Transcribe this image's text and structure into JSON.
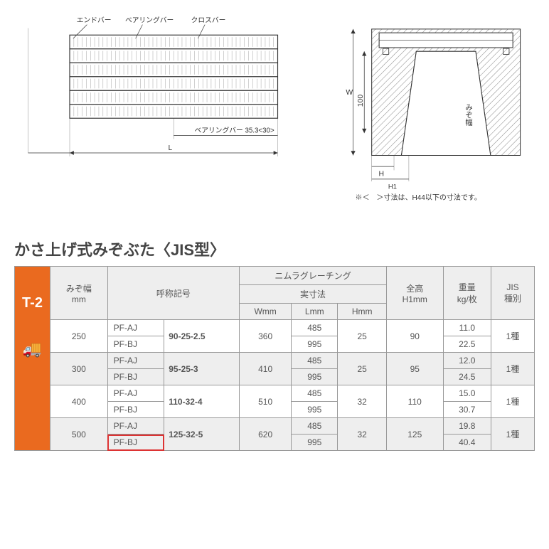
{
  "diagram_left": {
    "labels": {
      "end_bar": "エンドバー",
      "bearing_bar": "ベアリングバー",
      "cross_bar": "クロスバー",
      "bearing_bar_dim": "ベアリングバー 35.3<30>",
      "L": "L"
    }
  },
  "diagram_right": {
    "labels": {
      "W": "W",
      "mizo": "みぞ幅",
      "dim_100": "100",
      "H": "H",
      "H1": "H1"
    },
    "note": "※＜　＞寸法は、H44以下の寸法です。"
  },
  "title": "かさ上げ式みぞぶた〈JIS型〉",
  "side_label": "T-2",
  "table": {
    "headers": {
      "mizo": "みぞ幅\nmm",
      "symbol": "呼称記号",
      "grating": "ニムラグレーチング",
      "actual": "実寸法",
      "W": "Wmm",
      "L": "Lmm",
      "H": "Hmm",
      "height": "全高\nH1mm",
      "weight": "重量\nkg/枚",
      "jis": "JIS\n種別"
    },
    "rows": [
      {
        "mizo": "250",
        "prefix_a": "PF-AJ",
        "prefix_b": "PF-BJ",
        "code": "90-25-2.5",
        "W": "360",
        "L_a": "485",
        "L_b": "995",
        "H": "25",
        "H1": "90",
        "wt_a": "11.0",
        "wt_b": "22.5",
        "jis": "1種",
        "alt": false
      },
      {
        "mizo": "300",
        "prefix_a": "PF-AJ",
        "prefix_b": "PF-BJ",
        "code": "95-25-3",
        "W": "410",
        "L_a": "485",
        "L_b": "995",
        "H": "25",
        "H1": "95",
        "wt_a": "12.0",
        "wt_b": "24.5",
        "jis": "1種",
        "alt": true
      },
      {
        "mizo": "400",
        "prefix_a": "PF-AJ",
        "prefix_b": "PF-BJ",
        "code": "110-32-4",
        "W": "510",
        "L_a": "485",
        "L_b": "995",
        "H": "32",
        "H1": "110",
        "wt_a": "15.0",
        "wt_b": "30.7",
        "jis": "1種",
        "alt": false
      },
      {
        "mizo": "500",
        "prefix_a": "PF-AJ",
        "prefix_b": "PF-BJ",
        "code": "125-32-5",
        "W": "620",
        "L_a": "485",
        "L_b": "995",
        "H": "32",
        "H1": "125",
        "wt_a": "19.8",
        "wt_b": "40.4",
        "jis": "1種",
        "alt": true,
        "highlight_b": true
      }
    ]
  },
  "colors": {
    "accent": "#ea6a1f",
    "border": "#999999",
    "header_bg": "#eeeeee",
    "highlight_border": "#d33333",
    "text": "#555555"
  }
}
